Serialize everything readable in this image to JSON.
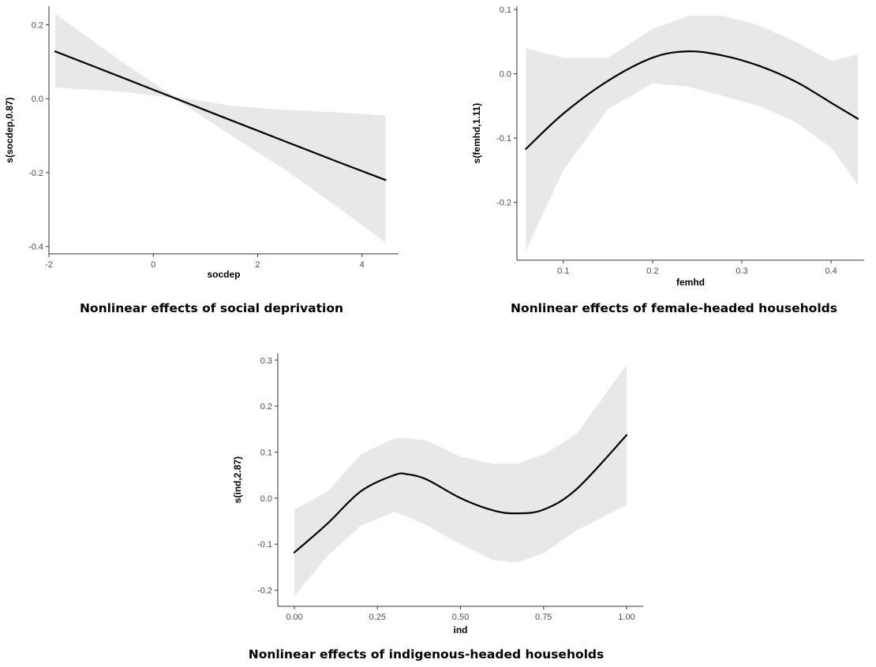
{
  "colors": {
    "band": "#e8e8e8",
    "curve": "#000000",
    "axis": "#333333"
  },
  "chart_data": [
    {
      "type": "line",
      "title": "",
      "caption": "Nonlinear effects of social deprivation",
      "xlabel": "socdep",
      "ylabel": "s(socdep,0.87)",
      "xlim": [
        -2.0,
        4.7
      ],
      "ylim": [
        -0.42,
        0.25
      ],
      "xticks": [
        -2,
        0,
        2,
        4
      ],
      "yticks": [
        -0.4,
        -0.2,
        0.0,
        0.2
      ],
      "xtick_labels": [
        "-2",
        "0",
        "2",
        "4"
      ],
      "ytick_labels": [
        "-0.4",
        "-0.2",
        "0.0",
        "0.2"
      ],
      "grid": false,
      "series": [
        {
          "x": [
            -1.88,
            -0.5,
            0.4,
            1.5,
            2.5,
            3.5,
            4.45
          ],
          "y": [
            0.128,
            0.052,
            0.002,
            -0.059,
            -0.114,
            -0.169,
            -0.22
          ],
          "lower": [
            0.03,
            0.018,
            0.001,
            -0.1,
            -0.19,
            -0.29,
            -0.39
          ],
          "upper": [
            0.23,
            0.09,
            0.006,
            -0.019,
            -0.03,
            -0.037,
            -0.045
          ]
        }
      ]
    },
    {
      "type": "line",
      "title": "",
      "caption": "Nonlinear effects of female-headed households",
      "xlabel": "femhd",
      "ylabel": "s(femhd,1.11)",
      "xlim": [
        0.048,
        0.437
      ],
      "ylim": [
        -0.29,
        0.105
      ],
      "xticks": [
        0.1,
        0.2,
        0.3,
        0.4
      ],
      "yticks": [
        -0.2,
        -0.1,
        0.0,
        0.1
      ],
      "xtick_labels": [
        "0.1",
        "0.2",
        "0.3",
        "0.4"
      ],
      "ytick_labels": [
        "-0.2",
        "-0.1",
        "0.0",
        "0.1"
      ],
      "grid": false,
      "series": [
        {
          "x": [
            0.058,
            0.1,
            0.15,
            0.2,
            0.24,
            0.28,
            0.32,
            0.36,
            0.4,
            0.43
          ],
          "y": [
            -0.117,
            -0.062,
            -0.011,
            0.025,
            0.035,
            0.028,
            0.012,
            -0.012,
            -0.045,
            -0.07
          ],
          "lower": [
            -0.275,
            -0.15,
            -0.055,
            -0.015,
            -0.02,
            -0.035,
            -0.05,
            -0.075,
            -0.115,
            -0.173
          ],
          "upper": [
            0.04,
            0.025,
            0.025,
            0.07,
            0.09,
            0.09,
            0.075,
            0.05,
            0.02,
            0.03
          ]
        }
      ]
    },
    {
      "type": "line",
      "title": "",
      "caption": "Nonlinear effects of indigenous-headed households",
      "xlabel": "ind",
      "ylabel": "s(ind,2.87)",
      "xlim": [
        -0.05,
        1.05
      ],
      "ylim": [
        -0.235,
        0.315
      ],
      "xticks": [
        0.0,
        0.25,
        0.5,
        0.75,
        1.0
      ],
      "yticks": [
        -0.2,
        -0.1,
        0.0,
        0.1,
        0.2,
        0.3
      ],
      "xtick_labels": [
        "0.00",
        "0.25",
        "0.50",
        "0.75",
        "1.00"
      ],
      "ytick_labels": [
        "-0.2",
        "-0.1",
        "0.0",
        "0.1",
        "0.2",
        "0.3"
      ],
      "grid": false,
      "series": [
        {
          "x": [
            0.0,
            0.1,
            0.2,
            0.3,
            0.34,
            0.4,
            0.5,
            0.6,
            0.67,
            0.75,
            0.85,
            1.0
          ],
          "y": [
            -0.118,
            -0.055,
            0.015,
            0.05,
            0.052,
            0.04,
            0.0,
            -0.027,
            -0.033,
            -0.025,
            0.02,
            0.137
          ],
          "lower": [
            -0.213,
            -0.125,
            -0.06,
            -0.03,
            -0.04,
            -0.06,
            -0.1,
            -0.135,
            -0.14,
            -0.12,
            -0.07,
            -0.015
          ],
          "upper": [
            -0.025,
            0.015,
            0.095,
            0.13,
            0.13,
            0.125,
            0.09,
            0.075,
            0.075,
            0.095,
            0.14,
            0.29
          ]
        }
      ]
    }
  ]
}
